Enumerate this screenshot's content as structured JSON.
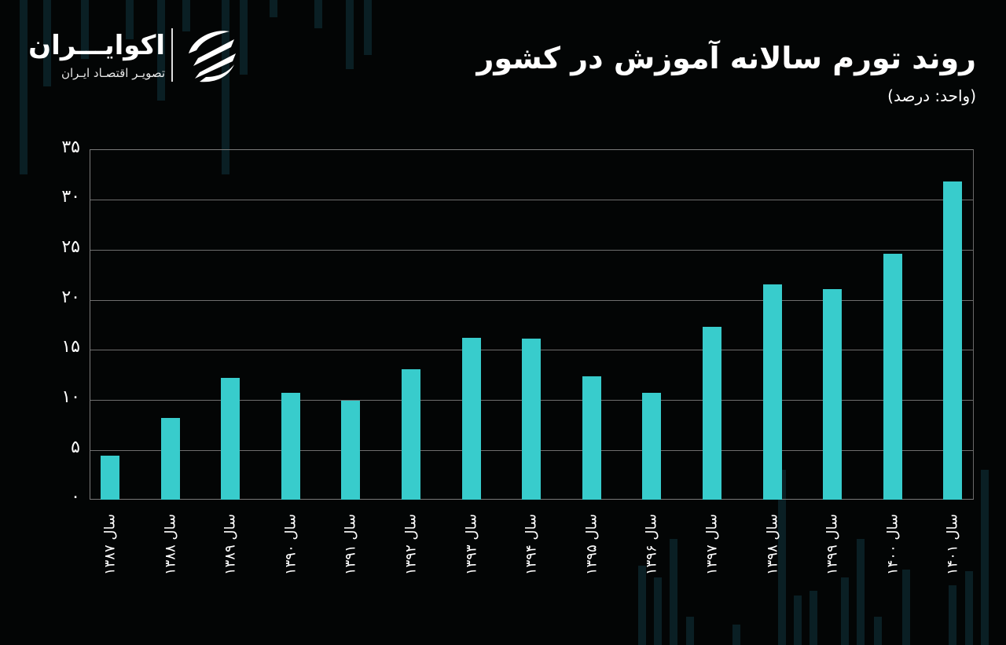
{
  "brand": {
    "name": "اکوایـــران",
    "tagline": "تصویـر اقتصـاد ایـران"
  },
  "header": {
    "title": "روند تورم سالانه آموزش در کشور",
    "unit": "(واحد: درصد)"
  },
  "colors": {
    "background": "#030505",
    "bar": "#38cccc",
    "grid": "#6e6e6e",
    "text": "#ffffff"
  },
  "yaxis": {
    "ticks": [
      "۰",
      "۵",
      "۱۰",
      "۱۵",
      "۲۰",
      "۲۵",
      "۳۰",
      "۳۵"
    ]
  },
  "xaxis": {
    "labels": [
      "سال ۱۳۸۷",
      "سال ۱۳۸۸",
      "سال ۱۳۸۹",
      "سال ۱۳۹۰",
      "سال ۱۳۹۱",
      "سال ۱۳۹۲",
      "سال ۱۳۹۳",
      "سال ۱۳۹۴",
      "سال ۱۳۹۵",
      "سال ۱۳۹۶",
      "سال ۱۳۹۷",
      "سال ۱۳۹۸",
      "سال ۱۳۹۹",
      "سال ۱۴۰۰",
      "سال ۱۴۰۱"
    ]
  },
  "chart_data": {
    "type": "bar",
    "title": "روند تورم سالانه آموزش در کشور",
    "subtitle": "(واحد: درصد)",
    "xlabel": "",
    "ylabel": "درصد",
    "categories": [
      "سال ۱۳۸۷",
      "سال ۱۳۸۸",
      "سال ۱۳۸۹",
      "سال ۱۳۹۰",
      "سال ۱۳۹۱",
      "سال ۱۳۹۲",
      "سال ۱۳۹۳",
      "سال ۱۳۹۴",
      "سال ۱۳۹۵",
      "سال ۱۳۹۶",
      "سال ۱۳۹۷",
      "سال ۱۳۹۸",
      "سال ۱۳۹۹",
      "سال ۱۴۰۰",
      "سال ۱۴۰۱"
    ],
    "values": [
      4.4,
      8.2,
      12.2,
      10.7,
      9.9,
      13.0,
      16.2,
      16.1,
      12.3,
      10.7,
      17.3,
      21.5,
      21.0,
      24.6,
      31.8
    ],
    "ylim": [
      0,
      35
    ],
    "yticks": [
      0,
      5,
      10,
      15,
      20,
      25,
      30,
      35
    ],
    "grid": true,
    "legend": null
  }
}
